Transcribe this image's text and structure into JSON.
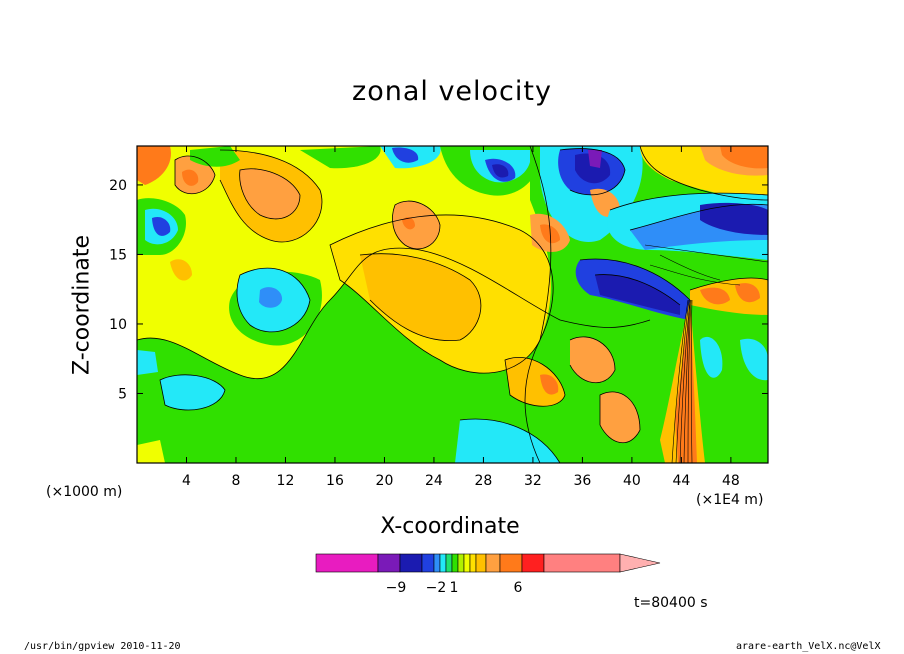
{
  "chart_data": {
    "type": "heatmap",
    "title": "zonal velocity",
    "xlabel": "X-coordinate",
    "ylabel": "Z-coordinate",
    "x_unit_left": "(×1000 m)",
    "x_unit_right": "(×1E4 m)",
    "x_ticks": [
      4,
      8,
      12,
      16,
      20,
      24,
      28,
      32,
      36,
      40,
      44,
      48
    ],
    "y_ticks": [
      5,
      10,
      15,
      20
    ],
    "xlim": [
      0,
      51
    ],
    "ylim": [
      0,
      22.8
    ],
    "colorbar": {
      "labels": [
        "-9",
        "-2",
        "1",
        "6"
      ],
      "colors": [
        "#e81cc0",
        "#7a1ab8",
        "#1b1bb0",
        "#2040e0",
        "#2f8ef8",
        "#23e8f8",
        "#1fe070",
        "#30e000",
        "#b0f000",
        "#f0ff00",
        "#ffe000",
        "#ffc000",
        "#ffa040",
        "#ff7a1a",
        "#ff2020",
        "#ff8080",
        "#ffb0b0"
      ]
    },
    "grid": false
  },
  "time_label": "t=80400 s",
  "footer": {
    "left": "/usr/bin/gpview   2010-11-20",
    "right": "arare-earth_VelX.nc@VelX"
  }
}
